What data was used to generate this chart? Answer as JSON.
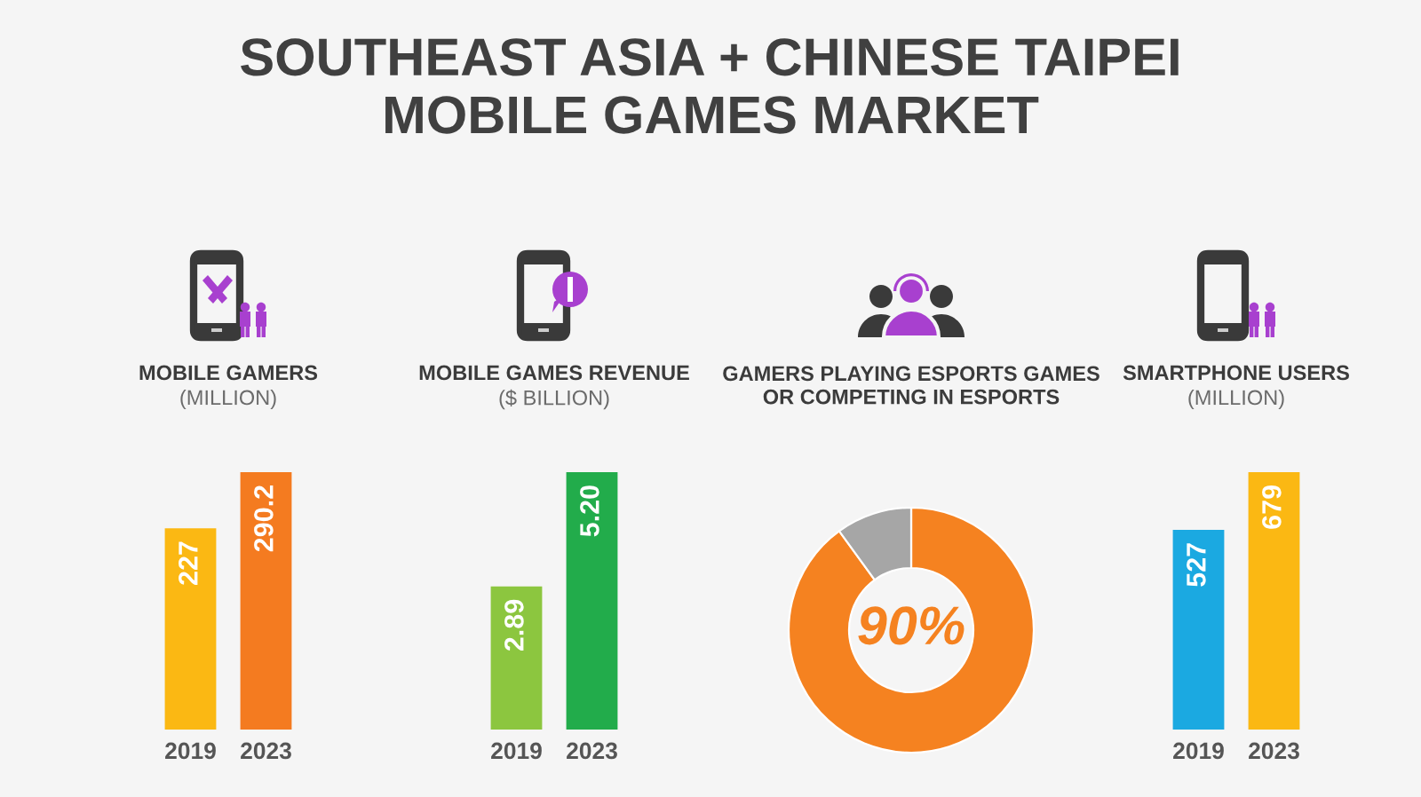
{
  "chart_data": [
    {
      "type": "other",
      "title": "SOUTHEAST ASIA + CHINESE TAIPEI\nMOBILE GAMES MARKET"
    },
    {
      "type": "bar",
      "title": "MOBILE GAMERS",
      "subtitle": "(MILLION)",
      "categories": [
        "2019",
        "2023"
      ],
      "values": [
        227,
        290.2
      ],
      "colors": [
        "#fbb813",
        "#f47b20"
      ],
      "data_labels": true,
      "tick_labels": "x"
    },
    {
      "type": "bar",
      "title": "MOBILE GAMES REVENUE",
      "subtitle": "($ BILLION)",
      "categories": [
        "2019",
        "2023"
      ],
      "values": [
        2.89,
        5.2
      ],
      "colors": [
        "#8cc63f",
        "#22ac4b"
      ],
      "value_labels": [
        "2.89",
        "5.20"
      ],
      "tick_labels": "x"
    },
    {
      "type": "donut",
      "title": "GAMERS PLAYING ESPORTS GAMES\nOR COMPETING IN ESPORTS",
      "categories": [
        null,
        null
      ],
      "values": [
        90,
        10
      ],
      "colors": [
        "#f58220",
        "#a6a6a6"
      ],
      "value_labels": [
        "90%",
        null
      ]
    },
    {
      "type": "bar",
      "title": "SMARTPHONE USERS",
      "subtitle": "(MILLION)",
      "categories": [
        "2019",
        "2023"
      ],
      "values": [
        527,
        679
      ],
      "colors": [
        "#1ba9e1",
        "#fbb813"
      ],
      "data_labels": true,
      "tick_labels": "x"
    }
  ]
}
